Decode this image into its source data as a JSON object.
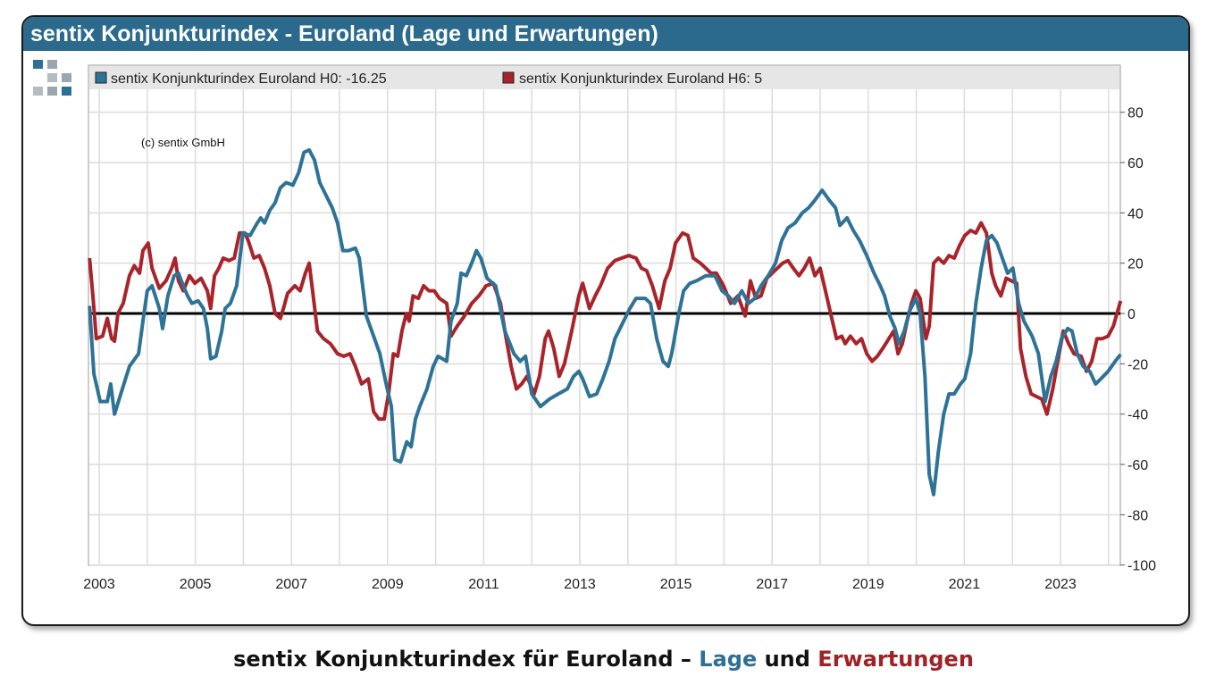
{
  "title": "sentix Konjunkturindex - Euroland (Lage und Erwartungen)",
  "caption": {
    "prefix": "sentix Konjunkturindex für Euroland – ",
    "lage": "Lage",
    "und": " und ",
    "erwartungen": "Erwartungen"
  },
  "copyright": "(c) sentix GmbH",
  "colors": {
    "titlebar": "#2b6a8d",
    "h0": "#2e7396",
    "h6": "#a8242a",
    "zero_line": "#000000"
  },
  "chart_data": {
    "type": "line",
    "title": "sentix Konjunkturindex - Euroland (Lage und Erwartungen)",
    "xlabel": "",
    "ylabel": "",
    "xlim": [
      2002.8,
      2024.25
    ],
    "ylim": [
      -100,
      90
    ],
    "x_ticks": [
      2003,
      2005,
      2007,
      2009,
      2011,
      2013,
      2015,
      2017,
      2019,
      2021,
      2023
    ],
    "y_ticks": [
      -100,
      -80,
      -60,
      -40,
      -20,
      0,
      20,
      40,
      60,
      80
    ],
    "y_axis_side": "right",
    "grid": true,
    "zero_line": true,
    "legend_position": "top",
    "series": [
      {
        "name": "sentix Konjunkturindex Euroland H0: -16.25",
        "color": "#2e7396",
        "x": [
          2002.8,
          2002.89,
          2003.02,
          2003.17,
          2003.24,
          2003.32,
          2003.45,
          2003.63,
          2003.82,
          2003.91,
          2004.0,
          2004.1,
          2004.25,
          2004.32,
          2004.43,
          2004.56,
          2004.65,
          2004.75,
          2004.84,
          2004.93,
          2005.06,
          2005.17,
          2005.25,
          2005.32,
          2005.43,
          2005.55,
          2005.62,
          2005.73,
          2005.86,
          2005.99,
          2006.14,
          2006.29,
          2006.36,
          2006.44,
          2006.55,
          2006.66,
          2006.77,
          2006.89,
          2007.03,
          2007.15,
          2007.26,
          2007.37,
          2007.48,
          2007.59,
          2007.72,
          2007.85,
          2007.96,
          2008.07,
          2008.19,
          2008.33,
          2008.41,
          2008.56,
          2008.71,
          2008.84,
          2008.97,
          2009.08,
          2009.15,
          2009.27,
          2009.4,
          2009.49,
          2009.58,
          2009.67,
          2009.82,
          2009.95,
          2010.05,
          2010.23,
          2010.32,
          2010.45,
          2010.53,
          2010.64,
          2010.75,
          2010.85,
          2010.94,
          2011.07,
          2011.25,
          2011.44,
          2011.63,
          2011.76,
          2011.87,
          2012.0,
          2012.18,
          2012.37,
          2012.55,
          2012.74,
          2012.87,
          2012.98,
          2013.06,
          2013.2,
          2013.35,
          2013.48,
          2013.61,
          2013.73,
          2013.86,
          2014.04,
          2014.17,
          2014.36,
          2014.47,
          2014.6,
          2014.73,
          2014.84,
          2014.91,
          2015.06,
          2015.16,
          2015.29,
          2015.43,
          2015.62,
          2015.81,
          2015.96,
          2016.09,
          2016.22,
          2016.37,
          2016.51,
          2016.64,
          2016.77,
          2016.92,
          2017.07,
          2017.2,
          2017.33,
          2017.48,
          2017.63,
          2017.76,
          2017.89,
          2018.04,
          2018.19,
          2018.32,
          2018.41,
          2018.56,
          2018.69,
          2018.82,
          2018.97,
          2019.12,
          2019.25,
          2019.34,
          2019.45,
          2019.56,
          2019.64,
          2019.75,
          2019.86,
          2019.99,
          2020.08,
          2020.18,
          2020.27,
          2020.36,
          2020.46,
          2020.57,
          2020.68,
          2020.79,
          2020.92,
          2021.01,
          2021.13,
          2021.24,
          2021.35,
          2021.46,
          2021.57,
          2021.68,
          2021.79,
          2021.9,
          2022.01,
          2022.13,
          2022.24,
          2022.41,
          2022.54,
          2022.68,
          2022.8,
          2022.91,
          2023.02,
          2023.15,
          2023.24,
          2023.35,
          2023.47,
          2023.61,
          2023.73,
          2023.84,
          2023.99,
          2024.14,
          2024.25
        ],
        "y": [
          3,
          -24,
          -35,
          -35,
          -28,
          -40,
          -32,
          -21,
          -16,
          -3,
          9,
          11,
          2,
          -6,
          7,
          15,
          16,
          11,
          7,
          4,
          5,
          2,
          -6,
          -18,
          -17,
          -7,
          2,
          4,
          11,
          32,
          31,
          36,
          38,
          36,
          41,
          44,
          50,
          52,
          51,
          56,
          64,
          65,
          61,
          52,
          47,
          42,
          36,
          25,
          25,
          26,
          22,
          -1,
          -9,
          -16,
          -28,
          -37,
          -58,
          -59,
          -51,
          -53,
          -42,
          -37,
          -30,
          -21,
          -17,
          -19,
          -3,
          4,
          16,
          15,
          20,
          25,
          22,
          14,
          11,
          -7,
          -16,
          -19,
          -17,
          -32,
          -37,
          -34,
          -32,
          -30,
          -25,
          -23,
          -26,
          -33,
          -32,
          -26,
          -19,
          -10,
          -5,
          2,
          6,
          6,
          4,
          -10,
          -19,
          -21,
          -16,
          0,
          9,
          12,
          13,
          15,
          15,
          9,
          7,
          4,
          9,
          4,
          6,
          11,
          15,
          20,
          29,
          34,
          36,
          40,
          42,
          45,
          49,
          45,
          42,
          35,
          38,
          33,
          29,
          23,
          16,
          11,
          7,
          -1,
          -6,
          -12,
          -7,
          1,
          6,
          0,
          -25,
          -64,
          -72,
          -55,
          -40,
          -32,
          -32,
          -28,
          -26,
          -16,
          4,
          18,
          29,
          31,
          28,
          22,
          16,
          18,
          4,
          -3,
          -9,
          -16,
          -35,
          -25,
          -19,
          -10,
          -6,
          -7,
          -16,
          -21,
          -23,
          -28,
          -26,
          -23,
          -19,
          -16.25
        ]
      },
      {
        "name": "sentix Konjunkturindex Euroland H6: 5",
        "color": "#a8242a",
        "x": [
          2002.8,
          2002.87,
          2002.94,
          2003.07,
          2003.17,
          2003.26,
          2003.32,
          2003.39,
          2003.5,
          2003.63,
          2003.73,
          2003.84,
          2003.91,
          2004.02,
          2004.1,
          2004.25,
          2004.39,
          2004.51,
          2004.58,
          2004.65,
          2004.75,
          2004.88,
          2004.99,
          2005.12,
          2005.25,
          2005.32,
          2005.4,
          2005.49,
          2005.58,
          2005.7,
          2005.81,
          2005.92,
          2006.03,
          2006.1,
          2006.22,
          2006.33,
          2006.44,
          2006.55,
          2006.66,
          2006.77,
          2006.85,
          2006.92,
          2007.07,
          2007.18,
          2007.29,
          2007.37,
          2007.44,
          2007.54,
          2007.67,
          2007.81,
          2007.96,
          2008.09,
          2008.22,
          2008.33,
          2008.46,
          2008.6,
          2008.71,
          2008.82,
          2008.93,
          2009.02,
          2009.12,
          2009.21,
          2009.3,
          2009.39,
          2009.45,
          2009.53,
          2009.64,
          2009.75,
          2009.86,
          2009.97,
          2010.08,
          2010.23,
          2010.32,
          2010.45,
          2010.6,
          2010.75,
          2010.9,
          2011.05,
          2011.2,
          2011.35,
          2011.46,
          2011.57,
          2011.68,
          2011.79,
          2011.9,
          2012.05,
          2012.16,
          2012.28,
          2012.35,
          2012.46,
          2012.57,
          2012.68,
          2012.83,
          2012.98,
          2013.06,
          2013.2,
          2013.32,
          2013.43,
          2013.58,
          2013.73,
          2013.87,
          2014.02,
          2014.17,
          2014.28,
          2014.39,
          2014.51,
          2014.65,
          2014.77,
          2014.88,
          2014.99,
          2015.14,
          2015.25,
          2015.36,
          2015.51,
          2015.62,
          2015.73,
          2015.84,
          2015.99,
          2016.14,
          2016.29,
          2016.44,
          2016.55,
          2016.66,
          2016.77,
          2016.89,
          2017.0,
          2017.11,
          2017.22,
          2017.33,
          2017.44,
          2017.56,
          2017.67,
          2017.78,
          2017.89,
          2018.0,
          2018.11,
          2018.23,
          2018.34,
          2018.45,
          2018.52,
          2018.63,
          2018.75,
          2018.86,
          2018.97,
          2019.08,
          2019.19,
          2019.3,
          2019.43,
          2019.53,
          2019.62,
          2019.71,
          2019.81,
          2019.9,
          2019.99,
          2020.08,
          2020.2,
          2020.27,
          2020.36,
          2020.46,
          2020.57,
          2020.68,
          2020.79,
          2020.9,
          2021.01,
          2021.13,
          2021.24,
          2021.35,
          2021.46,
          2021.57,
          2021.65,
          2021.76,
          2021.87,
          2021.98,
          2022.09,
          2022.17,
          2022.28,
          2022.39,
          2022.5,
          2022.61,
          2022.72,
          2022.84,
          2022.97,
          2023.06,
          2023.17,
          2023.28,
          2023.43,
          2023.54,
          2023.65,
          2023.76,
          2023.87,
          2023.99,
          2024.1,
          2024.25
        ],
        "y": [
          22,
          7,
          -10,
          -9,
          -2,
          -10,
          -11,
          0,
          4,
          15,
          19,
          16,
          25,
          28,
          18,
          10,
          13,
          18,
          22,
          13,
          9,
          15,
          12,
          14,
          9,
          2,
          15,
          18,
          22,
          21,
          22,
          32,
          32,
          29,
          22,
          23,
          18,
          11,
          0,
          -2,
          3,
          8,
          11,
          9,
          16,
          20,
          9,
          -7,
          -10,
          -12,
          -16,
          -17,
          -16,
          -21,
          -28,
          -26,
          -39,
          -42,
          -42,
          -32,
          -16,
          -17,
          -7,
          0,
          -3,
          7,
          6,
          11,
          9,
          9,
          6,
          4,
          -9,
          -5,
          -1,
          4,
          7,
          11,
          12,
          4,
          -9,
          -21,
          -30,
          -28,
          -25,
          -32,
          -25,
          -10,
          -7,
          -14,
          -25,
          -20,
          -7,
          7,
          12,
          2,
          7,
          11,
          18,
          21,
          22,
          23,
          22,
          18,
          17,
          11,
          2,
          13,
          18,
          28,
          32,
          31,
          22,
          20,
          18,
          16,
          16,
          11,
          4,
          7,
          -1,
          13,
          6,
          7,
          14,
          16,
          18,
          20,
          21,
          18,
          15,
          18,
          22,
          15,
          18,
          9,
          -1,
          -10,
          -9,
          -12,
          -9,
          -12,
          -10,
          -16,
          -19,
          -17,
          -14,
          -10,
          -7,
          -16,
          -12,
          -3,
          4,
          9,
          6,
          -10,
          -5,
          20,
          22,
          20,
          23,
          22,
          27,
          31,
          33,
          32,
          36,
          32,
          16,
          11,
          7,
          14,
          13,
          12,
          -14,
          -25,
          -32,
          -33,
          -34,
          -40,
          -30,
          -16,
          -7,
          -12,
          -16,
          -17,
          -23,
          -19,
          -10,
          -10,
          -9,
          -5,
          5
        ]
      }
    ]
  }
}
